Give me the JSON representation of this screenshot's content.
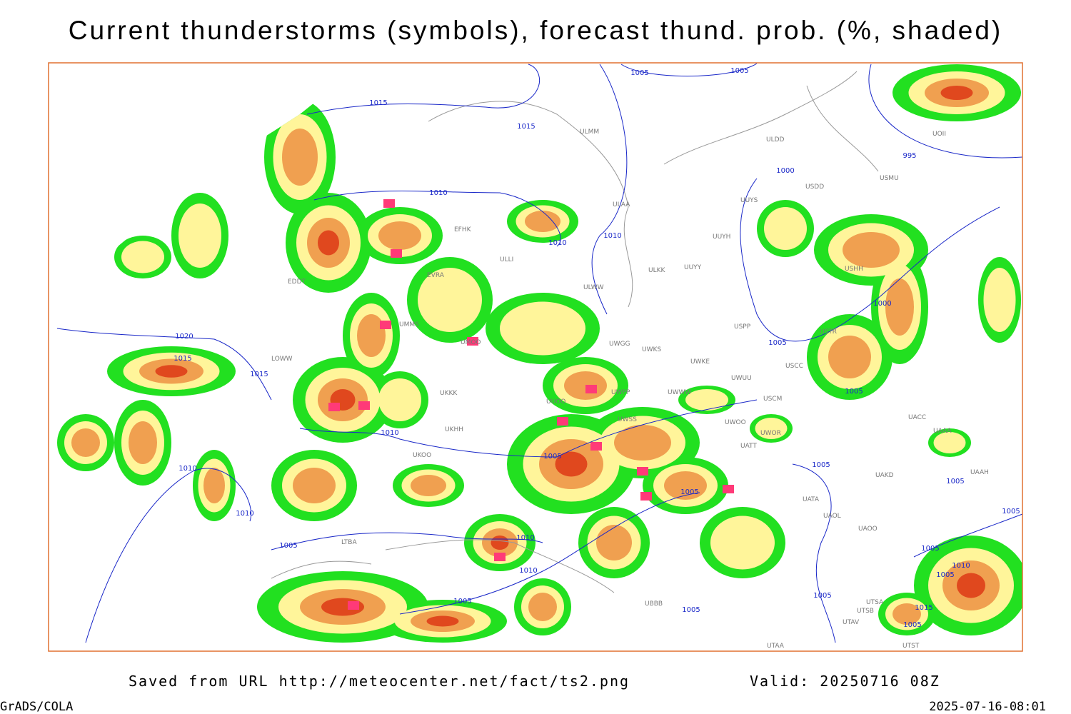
{
  "title": "Current thunderstorms (symbols), forecast thund. prob. (%, shaded)",
  "footer": {
    "source": "Saved from URL http://meteocenter.net/fact/ts2.png",
    "valid": "Valid: 20250716 08Z",
    "credit": "GrADS/COLA",
    "timestamp": "2025-07-16-08:01"
  },
  "isobars": [
    "1015",
    "1015",
    "1005",
    "1005",
    "995",
    "1000",
    "1010",
    "1010",
    "1010",
    "1000",
    "1005",
    "1005",
    "1020",
    "1015",
    "1015",
    "1010",
    "1005",
    "1010",
    "1005",
    "1005",
    "1005",
    "1005",
    "1010",
    "1010",
    "1005",
    "1010",
    "1005",
    "1005",
    "1010",
    "1005",
    "1005",
    "1005",
    "1015",
    "1005"
  ],
  "stations": [
    "ULMM",
    "ULDD",
    "USDD",
    "USMU",
    "ULAA",
    "UUYS",
    "EFHK",
    "UUYH",
    "USHH",
    "ULLI",
    "ULKK",
    "UUYY",
    "EVRA",
    "EDDT",
    "ULWW",
    "UMMS",
    "USTR",
    "USPP",
    "UWGG",
    "UWKS",
    "UWKE",
    "UMOO",
    "LOWW",
    "UWUU",
    "USCC",
    "UWPP",
    "UWWW",
    "USCM",
    "UKKK",
    "UUOO",
    "UWSS",
    "UWOO",
    "UWOR",
    "UACC",
    "UAAA",
    "UKHH",
    "UATT",
    "UKOO",
    "UAKD",
    "UAAH",
    "UATA",
    "UAOL",
    "UAOO",
    "LTBA",
    "UBBB",
    "UTSA",
    "UTSB",
    "UTAV",
    "UTAA",
    "UTST",
    "UOII"
  ]
}
